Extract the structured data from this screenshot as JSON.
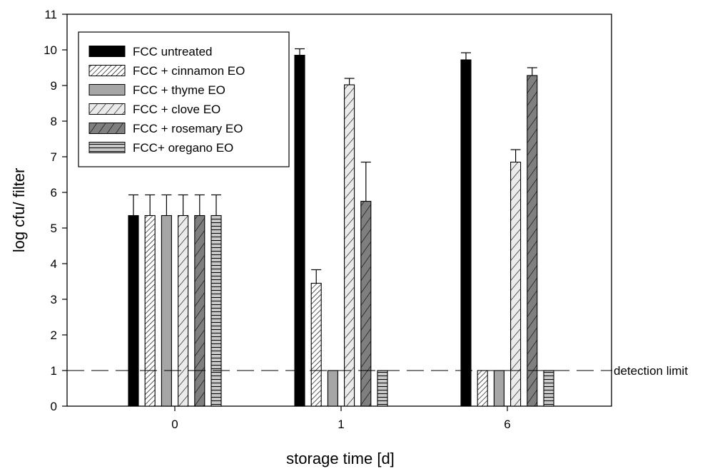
{
  "chart_data": {
    "type": "bar",
    "categories": [
      "0",
      "1",
      "6"
    ],
    "xlabel": "storage time [d]",
    "ylabel": "log cfu/ filter",
    "ylim": [
      0,
      11
    ],
    "yticks": [
      "0",
      "1",
      "2",
      "3",
      "4",
      "5",
      "6",
      "7",
      "8",
      "9",
      "10",
      "11"
    ],
    "legend_position": "top-left",
    "grid": false,
    "series": [
      {
        "name": "FCC untreated",
        "values": [
          5.35,
          9.85,
          9.72
        ],
        "errors": [
          0.58,
          0.18,
          0.2
        ],
        "fill": "#000000",
        "pattern": "solid"
      },
      {
        "name": "FCC + cinnamon EO",
        "values": [
          5.35,
          3.45,
          1.0
        ],
        "errors": [
          0.58,
          0.38,
          0
        ],
        "fill": "#ffffff",
        "pattern": "dense-diagonal"
      },
      {
        "name": "FCC + thyme EO",
        "values": [
          5.35,
          1.0,
          1.0
        ],
        "errors": [
          0.58,
          0,
          0
        ],
        "fill": "#a6a6a6",
        "pattern": "solid"
      },
      {
        "name": "FCC + clove EO",
        "values": [
          5.35,
          9.02,
          6.85
        ],
        "errors": [
          0.58,
          0.18,
          0.35
        ],
        "fill": "#ebebeb",
        "pattern": "wide-diagonal"
      },
      {
        "name": "FCC + rosemary EO",
        "values": [
          5.35,
          5.75,
          9.28
        ],
        "errors": [
          0.58,
          1.1,
          0.22
        ],
        "fill": "#7f7f7f",
        "pattern": "steep-diagonal"
      },
      {
        "name": "FCC+ oregano EO",
        "values": [
          5.35,
          1.0,
          1.0
        ],
        "errors": [
          0.58,
          0,
          0
        ],
        "fill": "#c8c8c8",
        "pattern": "horizontal"
      }
    ],
    "detection_limit": {
      "value": 1,
      "label": "detection limit"
    }
  }
}
